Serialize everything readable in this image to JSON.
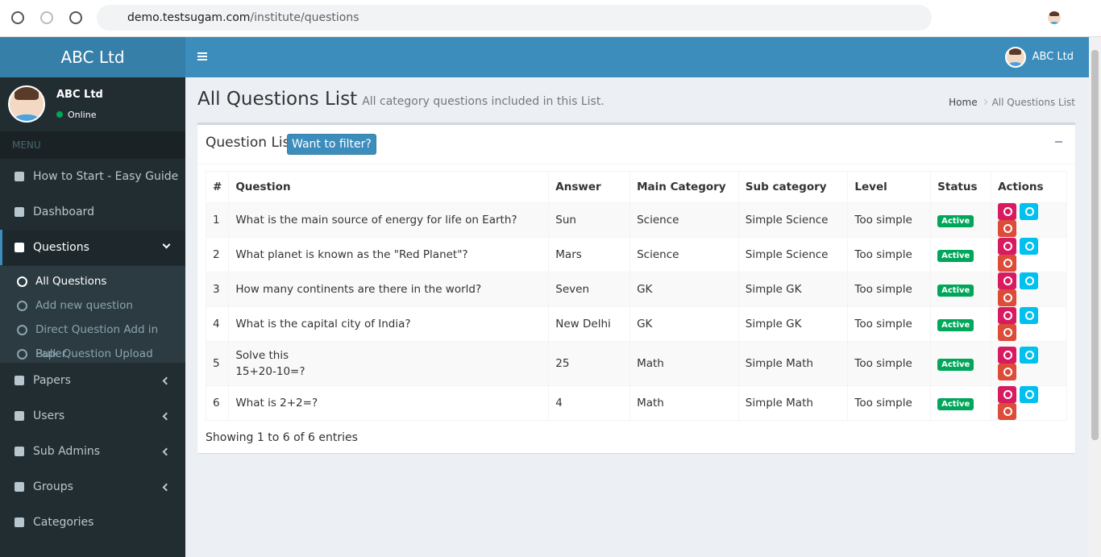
{
  "browser": {
    "url_host": "demo.testsugam.com",
    "url_path": "/institute/questions"
  },
  "sidebar": {
    "brand": "ABC Ltd",
    "user": "ABC Ltd",
    "status": "Online",
    "menu_header": "MENU",
    "items_top": [
      "How to Start - Easy Guide",
      "Dashboard",
      "Questions"
    ],
    "subitems": [
      "All Questions",
      "Add new question",
      "Direct Question Add in Paper",
      "Bulk Question Upload"
    ],
    "items_bottom": [
      "Papers",
      "Users",
      "Sub Admins",
      "Groups",
      "Categories"
    ]
  },
  "topbar": {
    "user": "ABC Ltd"
  },
  "page": {
    "title": "All Questions List",
    "subtitle": "All category questions included in this List.",
    "breadcrumb": [
      "Home",
      "All Questions List"
    ]
  },
  "box": {
    "title": "Question List",
    "filter_button": "Want to filter?"
  },
  "table": {
    "columns": [
      "#",
      "Question",
      "Answer",
      "Main Category",
      "Sub category",
      "Level",
      "Status",
      "Actions"
    ],
    "rows": [
      [
        "1",
        "What is the main source of energy for life on Earth?",
        "Sun",
        "Science",
        "Simple Science",
        "Too simple",
        "Active"
      ],
      [
        "2",
        "What planet is known as the \"Red Planet\"?",
        "Mars",
        "Science",
        "Simple Science",
        "Too simple",
        "Active"
      ],
      [
        "3",
        "How many continents are there in the world?",
        "Seven",
        "GK",
        "Simple GK",
        "Too simple",
        "Active"
      ],
      [
        "4",
        "What is the capital city of India?",
        "New Delhi",
        "GK",
        "Simple GK",
        "Too simple",
        "Active"
      ],
      [
        "5",
        "Solve this\n15+20-10=?",
        "25",
        "Math",
        "Simple Math",
        "Too simple",
        "Active"
      ],
      [
        "6",
        "What is 2+2=?",
        "4",
        "Math",
        "Simple Math",
        "Too simple",
        "Active"
      ]
    ]
  },
  "footer": "Showing 1 to 6 of 6 entries"
}
